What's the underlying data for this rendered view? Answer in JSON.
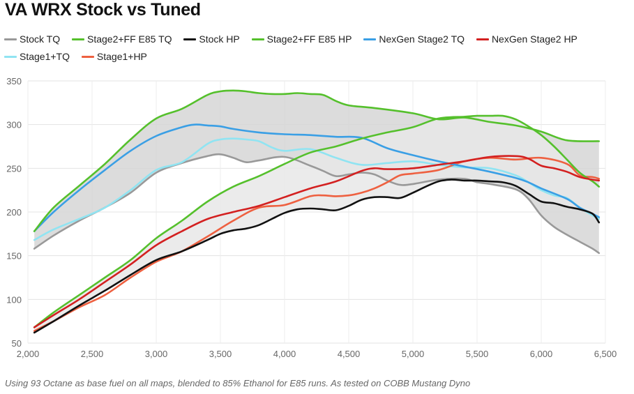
{
  "title": "VA WRX Stock vs Tuned",
  "footnote": "Using 93 Octane as base fuel on all maps, blended to 85% Ethanol for E85 runs. As tested on COBB Mustang Dyno",
  "chart_data": {
    "type": "line",
    "title": "VA WRX Stock vs Tuned",
    "xlabel": "",
    "ylabel": "",
    "xlim": [
      2000,
      6500
    ],
    "ylim": [
      50,
      350
    ],
    "x_ticks": [
      2000,
      2500,
      3000,
      3500,
      4000,
      4500,
      5000,
      5500,
      6000,
      6500
    ],
    "x_tick_labels": [
      "2,000",
      "2,500",
      "3,000",
      "3,500",
      "4,000",
      "4,500",
      "5,000",
      "5,500",
      "6,000",
      "6,500"
    ],
    "y_ticks": [
      50,
      100,
      150,
      200,
      250,
      300,
      350
    ],
    "y_tick_labels": [
      "50",
      "100",
      "150",
      "200",
      "250",
      "300",
      "350"
    ],
    "grid": true,
    "legend_position": "top",
    "shaded_bands": [
      {
        "between": [
          "Stock TQ",
          "Stage2+FF E85 TQ"
        ],
        "color": "#d6d6d6"
      },
      {
        "between": [
          "Stock HP",
          "Stage2+FF E85 HP"
        ],
        "color": "#e8e8e8"
      }
    ],
    "series": [
      {
        "name": "Stock TQ",
        "color": "#999999",
        "x": [
          2050,
          2200,
          2400,
          2600,
          2800,
          3000,
          3200,
          3400,
          3500,
          3600,
          3700,
          3800,
          4000,
          4200,
          4300,
          4400,
          4500,
          4600,
          4700,
          4800,
          4900,
          5000,
          5200,
          5400,
          5500,
          5600,
          5800,
          5900,
          6000,
          6100,
          6200,
          6300,
          6400,
          6450
        ],
        "y": [
          158,
          173,
          190,
          205,
          222,
          245,
          256,
          264,
          266,
          262,
          257,
          259,
          263,
          253,
          247,
          241,
          243,
          245,
          243,
          236,
          231,
          232,
          237,
          238,
          234,
          232,
          226,
          215,
          196,
          183,
          174,
          166,
          158,
          153
        ]
      },
      {
        "name": "Stage2+FF E85 TQ",
        "color": "#55c02c",
        "x": [
          2050,
          2200,
          2400,
          2600,
          2800,
          3000,
          3200,
          3400,
          3500,
          3600,
          3700,
          3800,
          3900,
          4000,
          4100,
          4200,
          4300,
          4400,
          4500,
          4700,
          5000,
          5200,
          5400,
          5600,
          5800,
          6000,
          6200,
          6450
        ],
        "y": [
          178,
          205,
          230,
          255,
          283,
          307,
          318,
          334,
          338,
          339,
          338,
          336,
          335,
          335,
          336,
          335,
          334,
          327,
          322,
          319,
          313,
          306,
          308,
          303,
          299,
          292,
          282,
          281
        ]
      },
      {
        "name": "Stock HP",
        "color": "#111111",
        "x": [
          2050,
          2200,
          2400,
          2600,
          2800,
          3000,
          3200,
          3400,
          3500,
          3600,
          3700,
          3800,
          3900,
          4000,
          4100,
          4200,
          4300,
          4400,
          4500,
          4600,
          4700,
          4800,
          4900,
          5000,
          5100,
          5200,
          5300,
          5400,
          5500,
          5600,
          5700,
          5800,
          5900,
          6000,
          6100,
          6200,
          6300,
          6400,
          6450
        ],
        "y": [
          62,
          75,
          93,
          110,
          128,
          145,
          155,
          168,
          175,
          179,
          181,
          185,
          192,
          199,
          203,
          204,
          203,
          202,
          207,
          214,
          217,
          217,
          216,
          222,
          229,
          235,
          237,
          236,
          236,
          235,
          234,
          230,
          221,
          212,
          210,
          206,
          203,
          198,
          188
        ]
      },
      {
        "name": "Stage2+FF E85 HP",
        "color": "#55c02c",
        "x": [
          2050,
          2200,
          2400,
          2600,
          2800,
          3000,
          3200,
          3400,
          3600,
          3800,
          4000,
          4200,
          4400,
          4600,
          4800,
          5000,
          5200,
          5400,
          5500,
          5600,
          5700,
          5800,
          5900,
          6000,
          6100,
          6200,
          6300,
          6400,
          6450
        ],
        "y": [
          68,
          85,
          105,
          125,
          145,
          170,
          190,
          212,
          229,
          241,
          255,
          268,
          275,
          284,
          291,
          297,
          307,
          309,
          310,
          310,
          310,
          306,
          298,
          288,
          275,
          260,
          245,
          235,
          229
        ]
      },
      {
        "name": "NexGen Stage2 TQ",
        "color": "#3a9fe5",
        "x": [
          2050,
          2200,
          2400,
          2600,
          2800,
          3000,
          3200,
          3300,
          3400,
          3500,
          3600,
          3800,
          4000,
          4200,
          4400,
          4600,
          4800,
          5000,
          5200,
          5400,
          5600,
          5800,
          5900,
          6000,
          6200,
          6300,
          6400,
          6450
        ],
        "y": [
          178,
          200,
          225,
          248,
          270,
          287,
          297,
          300,
          299,
          298,
          295,
          291,
          289,
          288,
          286,
          285,
          273,
          265,
          258,
          252,
          246,
          239,
          234,
          227,
          215,
          205,
          198,
          194
        ]
      },
      {
        "name": "NexGen Stage2 HP",
        "color": "#d32020",
        "x": [
          2050,
          2200,
          2400,
          2600,
          2800,
          3000,
          3200,
          3400,
          3600,
          3800,
          4000,
          4200,
          4400,
          4600,
          4700,
          4800,
          5000,
          5200,
          5400,
          5600,
          5800,
          5900,
          6000,
          6100,
          6200,
          6300,
          6400,
          6450
        ],
        "y": [
          68,
          82,
          100,
          120,
          140,
          162,
          178,
          192,
          200,
          207,
          217,
          227,
          235,
          247,
          250,
          249,
          250,
          254,
          258,
          263,
          264,
          261,
          253,
          250,
          246,
          240,
          237,
          236
        ]
      },
      {
        "name": "Stage1+TQ",
        "color": "#90e4f2",
        "x": [
          2050,
          2200,
          2400,
          2600,
          2800,
          3000,
          3200,
          3400,
          3500,
          3600,
          3700,
          3800,
          3900,
          4000,
          4200,
          4400,
          4600,
          4800,
          5000,
          5200,
          5400,
          5600,
          5800,
          5900,
          6000,
          6100,
          6200,
          6300,
          6400,
          6450
        ],
        "y": [
          168,
          180,
          192,
          205,
          225,
          248,
          257,
          278,
          283,
          284,
          283,
          281,
          274,
          270,
          272,
          262,
          254,
          256,
          258,
          254,
          251,
          250,
          242,
          234,
          225,
          219,
          216,
          205,
          196,
          192
        ]
      },
      {
        "name": "Stage1+HP",
        "color": "#ee6040",
        "x": [
          2050,
          2200,
          2400,
          2600,
          2800,
          3000,
          3200,
          3400,
          3600,
          3800,
          4000,
          4200,
          4300,
          4400,
          4500,
          4600,
          4700,
          4800,
          4900,
          5000,
          5200,
          5400,
          5600,
          5800,
          6000,
          6200,
          6300,
          6400,
          6450
        ],
        "y": [
          64,
          75,
          91,
          105,
          125,
          143,
          155,
          172,
          190,
          205,
          208,
          218,
          219,
          218,
          219,
          222,
          227,
          234,
          242,
          244,
          248,
          258,
          262,
          260,
          262,
          255,
          242,
          240,
          238
        ]
      }
    ]
  }
}
